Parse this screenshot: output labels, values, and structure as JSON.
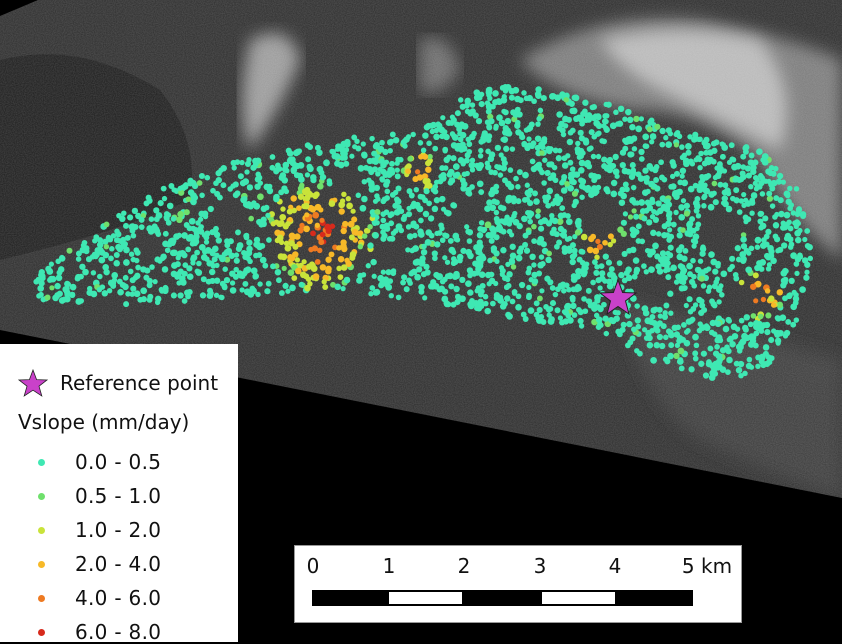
{
  "map": {
    "legend": {
      "reference_label": "Reference point",
      "reference_color": "#c941c9",
      "title": "Vslope (mm/day)",
      "classes": [
        {
          "label": "0.0 - 0.5",
          "color": "#3fe8b3"
        },
        {
          "label": "0.5 - 1.0",
          "color": "#6fe06c"
        },
        {
          "label": "1.0 - 2.0",
          "color": "#c9e33a"
        },
        {
          "label": "2.0 - 4.0",
          "color": "#f7b928"
        },
        {
          "label": "4.0 - 6.0",
          "color": "#ee7a22"
        },
        {
          "label": "6.0 - 8.0",
          "color": "#d72a1c"
        }
      ]
    },
    "scalebar": {
      "tick_labels": [
        "0",
        "1",
        "2",
        "3",
        "4",
        "5 km"
      ]
    },
    "reference_marker_icon": "star-icon",
    "background": "SAR amplitude imagery"
  }
}
